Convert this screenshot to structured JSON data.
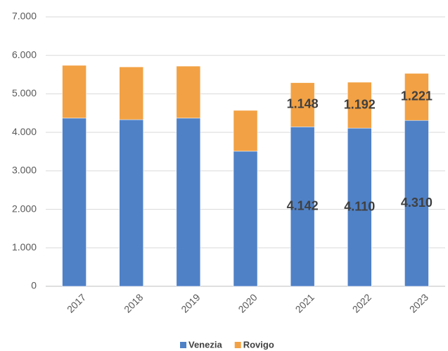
{
  "chart_data": {
    "type": "bar",
    "stacked": true,
    "categories": [
      "2017",
      "2018",
      "2019",
      "2020",
      "2021",
      "2022",
      "2023"
    ],
    "series": [
      {
        "name": "Venezia",
        "color": "#4f81c7",
        "values": [
          4370,
          4330,
          4370,
          3510,
          4142,
          4110,
          4310
        ],
        "value_labels": [
          null,
          null,
          null,
          null,
          "4.142",
          "4.110",
          "4.310"
        ]
      },
      {
        "name": "Rovigo",
        "color": "#f2a144",
        "values": [
          1370,
          1370,
          1350,
          1060,
          1148,
          1192,
          1221
        ],
        "value_labels": [
          null,
          null,
          null,
          null,
          "1.148",
          "1.192",
          "1.221"
        ]
      }
    ],
    "ylim": [
      0,
      7000
    ],
    "yticks": [
      {
        "value": 0,
        "label": "0"
      },
      {
        "value": 1000,
        "label": "1.000"
      },
      {
        "value": 2000,
        "label": "2.000"
      },
      {
        "value": 3000,
        "label": "3.000"
      },
      {
        "value": 4000,
        "label": "4.000"
      },
      {
        "value": 5000,
        "label": "5.000"
      },
      {
        "value": 6000,
        "label": "6.000"
      },
      {
        "value": 7000,
        "label": "7.000"
      }
    ],
    "grid": true,
    "legend": "bottom"
  }
}
